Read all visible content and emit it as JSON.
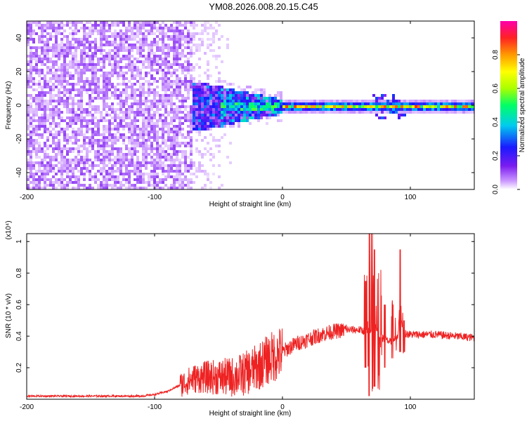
{
  "figure": {
    "title": "YM08.2026.008.20.15.C45"
  },
  "chart_data": [
    {
      "type": "heatmap",
      "xlabel": "Height of straight line (km)",
      "ylabel": "Frequency (Hz)",
      "xlim": [
        -200,
        150
      ],
      "ylim": [
        -50,
        50
      ],
      "xticks": [
        -200,
        -100,
        0,
        100
      ],
      "yticks": [
        -40,
        -20,
        0,
        20,
        40
      ],
      "colorbar": {
        "label": "Normalized spectral amplitude",
        "range": [
          0,
          1
        ],
        "ticks": [
          "0.0",
          "0.2",
          "0.4",
          "0.6",
          "0.8"
        ],
        "colors": [
          "#ffffff",
          "#cc99ff",
          "#7a1cf0",
          "#1a1aff",
          "#00ccee",
          "#00ff66",
          "#aaff00",
          "#ffff00",
          "#ff9900",
          "#ff2222",
          "#ff00aa"
        ]
      },
      "regions": [
        {
          "x": [
            -200,
            -72
          ],
          "freq_band": [
            -50,
            50
          ],
          "amplitude": 0.15
        },
        {
          "x": [
            -72,
            -50
          ],
          "freq_band": [
            -50,
            50
          ],
          "amplitude": 0.05
        },
        {
          "x": [
            -72,
            0
          ],
          "freq_band": [
            -12,
            12
          ],
          "amplitude": 0.3
        },
        {
          "x": [
            0,
            150
          ],
          "freq_band": [
            -3,
            3
          ],
          "amplitude": 0.5
        },
        {
          "x": [
            40,
            110
          ],
          "freq_band": [
            -1,
            1
          ],
          "amplitude": 0.9
        }
      ]
    },
    {
      "type": "line",
      "xlabel": "Height of straight line (km)",
      "ylabel": "SNR (10 * v/v)",
      "ymultiplier": "(x10⁴)",
      "xlim": [
        -200,
        150
      ],
      "ylim": [
        0,
        1.05
      ],
      "xticks": [
        -200,
        -100,
        0,
        100
      ],
      "yticks": [
        0.2,
        0.4,
        0.6,
        0.8,
        1.0
      ],
      "color": "#ee2222",
      "x": [
        -200,
        -150,
        -110,
        -100,
        -90,
        -80,
        -70,
        -60,
        -50,
        -40,
        -30,
        -20,
        -10,
        0,
        10,
        20,
        30,
        40,
        50,
        60,
        65,
        70,
        72,
        75,
        80,
        85,
        90,
        92,
        95,
        100,
        120,
        150
      ],
      "y": [
        0.02,
        0.02,
        0.02,
        0.03,
        0.05,
        0.09,
        0.13,
        0.14,
        0.14,
        0.14,
        0.16,
        0.2,
        0.26,
        0.3,
        0.35,
        0.38,
        0.41,
        0.43,
        0.44,
        0.44,
        0.43,
        0.42,
        0.5,
        0.4,
        0.38,
        0.36,
        0.4,
        0.55,
        0.42,
        0.41,
        0.41,
        0.39
      ],
      "spikes": [
        {
          "x": 68,
          "y": 1.05,
          "min": 0.02
        },
        {
          "x": 70,
          "y": 1.05,
          "min": 0.05
        },
        {
          "x": 72,
          "y": 0.95,
          "min": 0.08
        },
        {
          "x": 75,
          "y": 0.8,
          "min": 0.15
        },
        {
          "x": 65,
          "y": 0.75,
          "min": 0.2
        },
        {
          "x": 80,
          "y": 0.6,
          "min": 0.2
        },
        {
          "x": 86,
          "y": 0.6,
          "min": 0.26
        },
        {
          "x": 92,
          "y": 0.95,
          "min": 0.3
        },
        {
          "x": 95,
          "y": 0.5,
          "min": 0.3
        }
      ]
    }
  ]
}
